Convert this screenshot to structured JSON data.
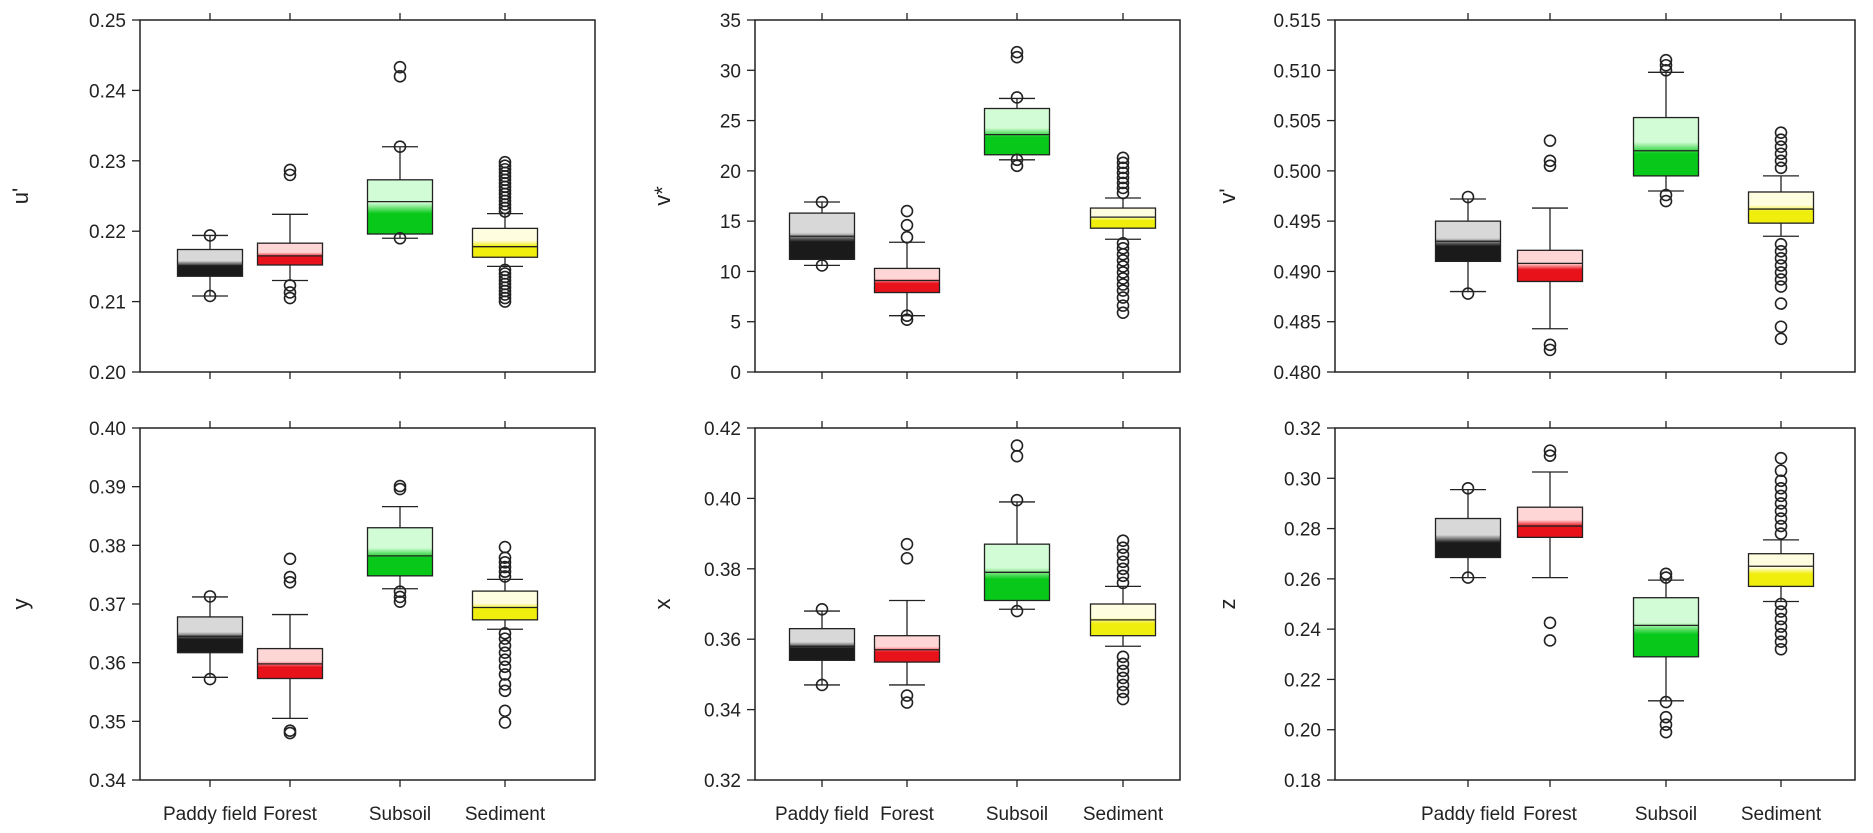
{
  "chart_data": [
    {
      "type": "box",
      "ylabel": "u'",
      "ylim": [
        0.2,
        0.25
      ],
      "yticks": [
        "0.20",
        "0.21",
        "0.22",
        "0.23",
        "0.24",
        "0.25"
      ],
      "categories": [
        "Paddy field",
        "Forest",
        "Subsoil",
        "Sediment"
      ],
      "show_xlabels": false,
      "boxes": [
        {
          "category": "Paddy field",
          "whisker_low": 0.2108,
          "q1": 0.2136,
          "median": 0.2151,
          "q3": 0.2174,
          "whisker_high": 0.2194,
          "outliers": [
            0.2108,
            0.2194
          ]
        },
        {
          "category": "Forest",
          "whisker_low": 0.213,
          "q1": 0.2152,
          "median": 0.2165,
          "q3": 0.2183,
          "whisker_high": 0.2224,
          "outliers": [
            0.2105,
            0.2113,
            0.2123,
            0.228,
            0.2287
          ]
        },
        {
          "category": "Subsoil",
          "whisker_low": 0.219,
          "q1": 0.2196,
          "median": 0.2242,
          "q3": 0.2273,
          "whisker_high": 0.232,
          "outliers": [
            0.219,
            0.232,
            0.242,
            0.2433
          ]
        },
        {
          "category": "Sediment",
          "whisker_low": 0.215,
          "q1": 0.2163,
          "median": 0.2178,
          "q3": 0.2204,
          "whisker_high": 0.2225,
          "outliers": [
            0.21,
            0.2105,
            0.211,
            0.2115,
            0.212,
            0.2125,
            0.213,
            0.2135,
            0.214,
            0.2145,
            0.2228,
            0.2233,
            0.2238,
            0.2243,
            0.2248,
            0.2253,
            0.2258,
            0.2263,
            0.2268,
            0.2273,
            0.2278,
            0.2283,
            0.2288,
            0.2293,
            0.2298
          ]
        }
      ]
    },
    {
      "type": "box",
      "ylabel": "v*",
      "ylim": [
        0,
        35
      ],
      "yticks": [
        "0",
        "5",
        "10",
        "15",
        "20",
        "25",
        "30",
        "35"
      ],
      "categories": [
        "Paddy field",
        "Forest",
        "Subsoil",
        "Sediment"
      ],
      "show_xlabels": false,
      "boxes": [
        {
          "category": "Paddy field",
          "whisker_low": 10.6,
          "q1": 11.2,
          "median": 13.5,
          "q3": 15.8,
          "whisker_high": 16.9,
          "outliers": [
            10.6,
            16.9
          ]
        },
        {
          "category": "Forest",
          "whisker_low": 5.6,
          "q1": 7.9,
          "median": 9.1,
          "q3": 10.3,
          "whisker_high": 12.9,
          "outliers": [
            5.2,
            5.6,
            13.4,
            14.6,
            16.0
          ]
        },
        {
          "category": "Subsoil",
          "whisker_low": 21.1,
          "q1": 21.6,
          "median": 23.6,
          "q3": 26.2,
          "whisker_high": 27.2,
          "outliers": [
            20.5,
            21.1,
            27.3,
            31.3,
            31.8
          ]
        },
        {
          "category": "Sediment",
          "whisker_low": 13.2,
          "q1": 14.3,
          "median": 15.4,
          "q3": 16.3,
          "whisker_high": 17.3,
          "outliers": [
            5.9,
            6.6,
            7.4,
            8.1,
            8.7,
            9.3,
            9.9,
            10.5,
            11.1,
            11.7,
            12.3,
            12.8,
            17.8,
            18.3,
            18.8,
            19.3,
            19.8,
            20.3,
            20.8,
            21.3
          ]
        }
      ]
    },
    {
      "type": "box",
      "ylabel": "v'",
      "ylim": [
        0.48,
        0.515
      ],
      "yticks": [
        "0.480",
        "0.485",
        "0.490",
        "0.495",
        "0.500",
        "0.505",
        "0.510",
        "0.515"
      ],
      "categories": [
        "Paddy field",
        "Forest",
        "Subsoil",
        "Sediment"
      ],
      "show_xlabels": false,
      "boxes": [
        {
          "category": "Paddy field",
          "whisker_low": 0.488,
          "q1": 0.491,
          "median": 0.493,
          "q3": 0.495,
          "whisker_high": 0.4972,
          "outliers": [
            0.4878,
            0.4974
          ]
        },
        {
          "category": "Forest",
          "whisker_low": 0.4843,
          "q1": 0.489,
          "median": 0.4908,
          "q3": 0.4921,
          "whisker_high": 0.4963,
          "outliers": [
            0.4822,
            0.4827,
            0.5005,
            0.501,
            0.503
          ]
        },
        {
          "category": "Subsoil",
          "whisker_low": 0.498,
          "q1": 0.4995,
          "median": 0.502,
          "q3": 0.5053,
          "whisker_high": 0.5098,
          "outliers": [
            0.497,
            0.4976,
            0.51,
            0.5105,
            0.511
          ]
        },
        {
          "category": "Sediment",
          "whisker_low": 0.4935,
          "q1": 0.4948,
          "median": 0.4962,
          "q3": 0.4979,
          "whisker_high": 0.4995,
          "outliers": [
            0.4833,
            0.4845,
            0.4868,
            0.4885,
            0.4892,
            0.4899,
            0.4906,
            0.4913,
            0.492,
            0.4927,
            0.5003,
            0.501,
            0.5017,
            0.5024,
            0.5031,
            0.5038
          ]
        }
      ]
    },
    {
      "type": "box",
      "ylabel": "y",
      "ylim": [
        0.34,
        0.4
      ],
      "yticks": [
        "0.34",
        "0.35",
        "0.36",
        "0.37",
        "0.38",
        "0.39",
        "0.40"
      ],
      "categories": [
        "Paddy field",
        "Forest",
        "Subsoil",
        "Sediment"
      ],
      "show_xlabels": true,
      "boxes": [
        {
          "category": "Paddy field",
          "whisker_low": 0.3575,
          "q1": 0.3617,
          "median": 0.3645,
          "q3": 0.3678,
          "whisker_high": 0.3712,
          "outliers": [
            0.3572,
            0.3713
          ]
        },
        {
          "category": "Forest",
          "whisker_low": 0.3505,
          "q1": 0.3573,
          "median": 0.3598,
          "q3": 0.3624,
          "whisker_high": 0.3682,
          "outliers": [
            0.348,
            0.3484,
            0.3737,
            0.3746,
            0.3777
          ]
        },
        {
          "category": "Subsoil",
          "whisker_low": 0.3726,
          "q1": 0.3748,
          "median": 0.3782,
          "q3": 0.383,
          "whisker_high": 0.3866,
          "outliers": [
            0.3704,
            0.3712,
            0.3721,
            0.3896,
            0.3901
          ]
        },
        {
          "category": "Sediment",
          "whisker_low": 0.3657,
          "q1": 0.3673,
          "median": 0.3694,
          "q3": 0.3722,
          "whisker_high": 0.3742,
          "outliers": [
            0.3498,
            0.3518,
            0.3552,
            0.3563,
            0.358,
            0.3593,
            0.3605,
            0.3617,
            0.3629,
            0.3641,
            0.365,
            0.3747,
            0.3755,
            0.3763,
            0.3771,
            0.3779,
            0.3797
          ]
        }
      ]
    },
    {
      "type": "box",
      "ylabel": "x",
      "ylim": [
        0.32,
        0.42
      ],
      "yticks": [
        "0.32",
        "0.34",
        "0.36",
        "0.38",
        "0.40",
        "0.42"
      ],
      "categories": [
        "Paddy field",
        "Forest",
        "Subsoil",
        "Sediment"
      ],
      "show_xlabels": true,
      "boxes": [
        {
          "category": "Paddy field",
          "whisker_low": 0.347,
          "q1": 0.354,
          "median": 0.358,
          "q3": 0.363,
          "whisker_high": 0.368,
          "outliers": [
            0.347,
            0.3685
          ]
        },
        {
          "category": "Forest",
          "whisker_low": 0.347,
          "q1": 0.3535,
          "median": 0.357,
          "q3": 0.361,
          "whisker_high": 0.371,
          "outliers": [
            0.342,
            0.344,
            0.383,
            0.387
          ]
        },
        {
          "category": "Subsoil",
          "whisker_low": 0.3685,
          "q1": 0.371,
          "median": 0.379,
          "q3": 0.387,
          "whisker_high": 0.399,
          "outliers": [
            0.368,
            0.3995,
            0.412,
            0.415
          ]
        },
        {
          "category": "Sediment",
          "whisker_low": 0.358,
          "q1": 0.361,
          "median": 0.3655,
          "q3": 0.37,
          "whisker_high": 0.375,
          "outliers": [
            0.343,
            0.345,
            0.347,
            0.349,
            0.351,
            0.353,
            0.355,
            0.376,
            0.378,
            0.38,
            0.382,
            0.384,
            0.386,
            0.388
          ]
        }
      ]
    },
    {
      "type": "box",
      "ylabel": "z",
      "ylim": [
        0.18,
        0.32
      ],
      "yticks": [
        "0.18",
        "0.20",
        "0.22",
        "0.24",
        "0.26",
        "0.28",
        "0.30",
        "0.32"
      ],
      "categories": [
        "Paddy field",
        "Forest",
        "Subsoil",
        "Sediment"
      ],
      "show_xlabels": true,
      "boxes": [
        {
          "category": "Paddy field",
          "whisker_low": 0.2605,
          "q1": 0.2685,
          "median": 0.2745,
          "q3": 0.284,
          "whisker_high": 0.2955,
          "outliers": [
            0.2605,
            0.296
          ]
        },
        {
          "category": "Forest",
          "whisker_low": 0.2605,
          "q1": 0.2765,
          "median": 0.281,
          "q3": 0.2885,
          "whisker_high": 0.3025,
          "outliers": [
            0.2355,
            0.2425,
            0.309,
            0.311
          ]
        },
        {
          "category": "Subsoil",
          "whisker_low": 0.2115,
          "q1": 0.229,
          "median": 0.2415,
          "q3": 0.2525,
          "whisker_high": 0.2595,
          "outliers": [
            0.199,
            0.202,
            0.205,
            0.211,
            0.2605,
            0.262
          ]
        },
        {
          "category": "Sediment",
          "whisker_low": 0.251,
          "q1": 0.257,
          "median": 0.265,
          "q3": 0.27,
          "whisker_high": 0.2755,
          "outliers": [
            0.232,
            0.235,
            0.238,
            0.241,
            0.244,
            0.247,
            0.25,
            0.278,
            0.281,
            0.284,
            0.287,
            0.29,
            0.293,
            0.296,
            0.299,
            0.303,
            0.308
          ]
        }
      ]
    }
  ],
  "colors": {
    "Paddy field": {
      "dark": "#1a1a1a",
      "light": "#d8d8d8"
    },
    "Forest": {
      "dark": "#e8121b",
      "light": "#ffd6d6"
    },
    "Subsoil": {
      "dark": "#08c91a",
      "light": "#d2fcd5"
    },
    "Sediment": {
      "dark": "#f0ee0c",
      "light": "#fffde0"
    }
  }
}
